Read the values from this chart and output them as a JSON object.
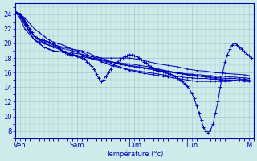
{
  "xlabel": "Température (°c)",
  "ylim": [
    7,
    25.5
  ],
  "xlim": [
    0,
    100
  ],
  "yticks": [
    8,
    10,
    12,
    14,
    16,
    18,
    20,
    22,
    24
  ],
  "xtick_labels": [
    "Ven",
    "Sam",
    "Dim",
    "Lun",
    "M"
  ],
  "xtick_positions": [
    2,
    26,
    50,
    74,
    98
  ],
  "background_color": "#ceeaea",
  "grid_color": "#a8c8c8",
  "line_color": "#0000bb",
  "marker": "+",
  "series": [
    {
      "x": [
        0,
        2,
        4,
        6,
        8,
        10,
        12,
        14,
        16,
        18,
        20,
        22,
        24,
        26,
        28,
        30,
        32,
        34,
        36,
        38,
        40,
        42,
        44,
        46,
        48,
        50,
        52,
        54,
        56,
        58,
        60,
        62,
        64,
        66,
        68,
        70,
        72,
        74,
        76,
        78,
        80,
        82,
        84,
        86,
        88,
        90,
        92,
        94,
        96,
        98
      ],
      "y": [
        24.3,
        24.0,
        23.5,
        22.8,
        22.0,
        21.5,
        21.0,
        20.5,
        20.2,
        20.0,
        19.8,
        19.5,
        19.2,
        19.0,
        18.8,
        18.5,
        18.2,
        18.0,
        17.8,
        17.5,
        17.3,
        17.0,
        16.8,
        16.5,
        16.3,
        16.2,
        16.0,
        15.9,
        15.8,
        15.7,
        15.6,
        15.5,
        15.4,
        15.3,
        15.2,
        15.1,
        15.0,
        14.9,
        14.8,
        14.8,
        14.8,
        14.8,
        14.8,
        14.8,
        14.8,
        14.8,
        14.9,
        14.9,
        15.0,
        15.0
      ]
    },
    {
      "x": [
        0,
        2,
        4,
        8,
        12,
        16,
        20,
        24,
        28,
        32,
        36,
        40,
        44,
        48,
        52,
        56,
        60,
        64,
        68,
        72,
        76,
        80,
        84,
        88,
        92,
        96,
        98
      ],
      "y": [
        24.3,
        23.8,
        22.5,
        21.0,
        20.0,
        19.5,
        19.0,
        18.7,
        18.5,
        18.2,
        18.0,
        18.0,
        18.0,
        18.0,
        17.8,
        17.5,
        17.2,
        17.0,
        16.8,
        16.5,
        16.3,
        16.2,
        16.0,
        15.9,
        15.8,
        15.7,
        15.6
      ]
    },
    {
      "x": [
        0,
        2,
        4,
        8,
        12,
        16,
        20,
        24,
        28,
        32,
        36,
        40,
        44,
        48,
        52,
        56,
        60,
        64,
        68,
        72,
        74,
        76,
        78,
        80,
        82,
        84,
        86,
        88,
        90,
        92,
        94,
        96,
        98
      ],
      "y": [
        24.3,
        23.5,
        22.0,
        20.5,
        19.5,
        19.0,
        18.8,
        18.5,
        18.2,
        17.9,
        17.6,
        17.5,
        17.3,
        17.2,
        17.0,
        16.8,
        16.5,
        16.2,
        16.0,
        15.8,
        15.7,
        15.6,
        15.5,
        15.4,
        15.3,
        15.2,
        15.1,
        15.0,
        15.0,
        15.0,
        14.9,
        14.9,
        14.8
      ]
    },
    {
      "x": [
        0,
        2,
        4,
        6,
        8,
        10,
        12,
        16,
        20,
        24,
        28,
        30,
        32,
        34,
        36,
        38,
        40,
        42,
        44,
        46,
        48,
        50,
        52,
        54,
        56,
        58,
        60,
        62,
        64,
        66,
        68,
        70,
        72,
        74,
        76,
        78,
        80,
        82,
        84,
        86,
        88,
        90,
        92,
        94,
        96,
        98
      ],
      "y": [
        24.4,
        24.0,
        23.2,
        22.0,
        21.0,
        20.5,
        20.2,
        19.8,
        19.5,
        19.2,
        19.0,
        18.8,
        18.5,
        18.2,
        18.0,
        17.8,
        17.5,
        17.3,
        17.1,
        17.0,
        16.9,
        16.8,
        16.7,
        16.6,
        16.5,
        16.4,
        16.3,
        16.2,
        16.1,
        16.0,
        15.9,
        15.8,
        15.7,
        15.6,
        15.5,
        15.5,
        15.4,
        15.4,
        15.3,
        15.3,
        15.2,
        15.2,
        15.2,
        15.1,
        15.1,
        15.0
      ]
    },
    {
      "x": [
        0,
        2,
        4,
        6,
        8,
        10,
        12,
        14,
        16,
        20,
        24,
        26,
        28,
        30,
        32,
        34,
        36,
        38,
        40,
        44,
        48,
        52,
        54,
        56,
        58,
        60,
        62,
        64,
        66,
        68,
        70,
        72,
        74,
        76,
        78,
        80,
        82,
        84,
        86,
        88,
        90,
        92,
        94,
        96,
        98
      ],
      "y": [
        24.4,
        24.1,
        23.0,
        21.5,
        20.5,
        20.2,
        20.0,
        19.8,
        19.6,
        19.3,
        19.0,
        18.8,
        18.5,
        18.2,
        18.0,
        17.8,
        17.5,
        17.3,
        17.0,
        16.7,
        16.4,
        16.2,
        16.1,
        16.0,
        15.9,
        15.8,
        15.7,
        15.6,
        15.5,
        15.5,
        15.4,
        15.3,
        15.3,
        15.2,
        15.2,
        15.2,
        15.1,
        15.1,
        15.0,
        15.0,
        15.0,
        14.9,
        14.9,
        14.8,
        14.8
      ]
    }
  ],
  "series_sam_dip": {
    "x": [
      0,
      1,
      2,
      3,
      4,
      5,
      6,
      7,
      8,
      9,
      10,
      11,
      12,
      13,
      14,
      15,
      16,
      17,
      18,
      19,
      20,
      21,
      22,
      23,
      24,
      25,
      26,
      27,
      28,
      29,
      30,
      31,
      32,
      33,
      34,
      35,
      36,
      37,
      38,
      39,
      40,
      41,
      42,
      43,
      44,
      45,
      46,
      47,
      48,
      49,
      50,
      51,
      52,
      53,
      54,
      55,
      56,
      57,
      58,
      59,
      60,
      61,
      62,
      63,
      64,
      65,
      66,
      67,
      68,
      69,
      70,
      71,
      72,
      73,
      74,
      75,
      76,
      77,
      78,
      79,
      80,
      81,
      82,
      83,
      84,
      85,
      86,
      87,
      88,
      89,
      90,
      91,
      92,
      93,
      94,
      95,
      96,
      97,
      98,
      99
    ],
    "y": [
      24.3,
      24.2,
      24.0,
      23.5,
      23.0,
      22.5,
      22.0,
      21.5,
      21.0,
      20.8,
      20.6,
      20.5,
      20.4,
      20.3,
      20.2,
      20.1,
      20.0,
      19.8,
      19.5,
      19.2,
      19.0,
      18.8,
      18.6,
      18.5,
      18.4,
      18.3,
      18.2,
      18.1,
      18.0,
      17.9,
      17.5,
      17.2,
      16.9,
      16.5,
      15.8,
      15.2,
      14.8,
      15.0,
      15.5,
      16.0,
      16.5,
      17.0,
      17.3,
      17.5,
      17.8,
      18.0,
      18.2,
      18.3,
      18.5,
      18.4,
      18.3,
      18.2,
      18.0,
      17.8,
      17.5,
      17.3,
      17.0,
      16.8,
      16.6,
      16.4,
      16.3,
      16.2,
      16.1,
      16.0,
      15.9,
      15.8,
      15.7,
      15.5,
      15.3,
      15.0,
      14.8,
      14.5,
      14.2,
      13.8,
      13.2,
      12.5,
      11.5,
      10.5,
      9.5,
      8.5,
      8.0,
      7.8,
      8.2,
      9.0,
      10.5,
      12.0,
      14.0,
      16.0,
      17.5,
      18.5,
      19.2,
      19.8,
      20.0,
      19.8,
      19.5,
      19.2,
      18.9,
      18.6,
      18.3,
      18.0
    ]
  },
  "series_lun_peak": {
    "x": [
      0,
      2,
      4,
      6,
      8,
      10,
      12,
      14,
      16,
      20,
      24,
      28,
      32,
      36,
      40,
      44,
      48,
      52,
      56,
      60,
      64,
      68,
      70,
      72,
      74,
      76,
      78,
      80,
      82,
      84,
      86,
      88,
      90,
      92,
      94,
      96,
      98
    ],
    "y": [
      24.3,
      23.8,
      22.8,
      21.5,
      20.5,
      20.0,
      19.5,
      19.2,
      19.0,
      18.8,
      18.5,
      18.2,
      18.0,
      17.8,
      17.5,
      17.2,
      17.0,
      16.8,
      16.6,
      16.4,
      16.2,
      16.0,
      15.9,
      15.8,
      15.8,
      15.7,
      15.7,
      15.6,
      15.6,
      15.5,
      15.5,
      15.5,
      15.4,
      15.4,
      15.3,
      15.3,
      15.2
    ]
  }
}
